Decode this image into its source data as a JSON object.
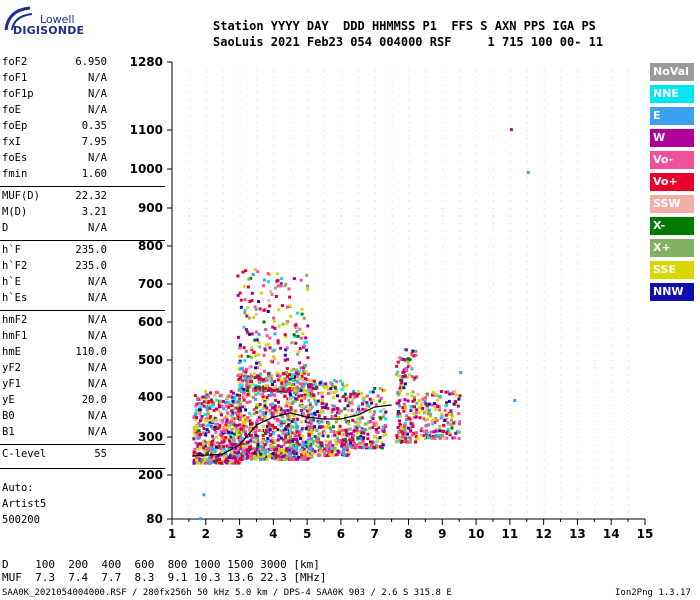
{
  "logo": {
    "line1": "Lowell",
    "line2": "DIGISONDE"
  },
  "header": {
    "line1": "Station YYYY DAY  DDD HHMMSS P1  FFS S AXN PPS IGA PS",
    "line2": "SaoLuis 2021 Feb23 054 004000 RSF     1 715 100 00- 11"
  },
  "params": [
    {
      "name": "foF2",
      "value": "6.950"
    },
    {
      "name": "foF1",
      "value": "N/A"
    },
    {
      "name": "foF1p",
      "value": "N/A"
    },
    {
      "name": "foE",
      "value": "N/A"
    },
    {
      "name": "foEp",
      "value": "0.35"
    },
    {
      "name": "fxI",
      "value": "7.95"
    },
    {
      "name": "foEs",
      "value": "N/A"
    },
    {
      "name": "fmin",
      "value": "1.60"
    },
    {
      "name": "MUF(D)",
      "value": "22.32"
    },
    {
      "name": "M(D)",
      "value": "3.21"
    },
    {
      "name": "D",
      "value": "N/A"
    },
    {
      "name": "h`F",
      "value": "235.0"
    },
    {
      "name": "h`F2",
      "value": "235.0"
    },
    {
      "name": "h`E",
      "value": "N/A"
    },
    {
      "name": "h`Es",
      "value": "N/A"
    },
    {
      "name": "hmF2",
      "value": "N/A"
    },
    {
      "name": "hmF1",
      "value": "N/A"
    },
    {
      "name": "hmE",
      "value": "110.0"
    },
    {
      "name": "yF2",
      "value": "N/A"
    },
    {
      "name": "yF1",
      "value": "N/A"
    },
    {
      "name": "yE",
      "value": "20.0"
    },
    {
      "name": "B0",
      "value": "N/A"
    },
    {
      "name": "B1",
      "value": "N/A"
    },
    {
      "name": "C-level",
      "value": "55"
    }
  ],
  "auto": {
    "line1": "Auto:",
    "line2": "Artist5",
    "line3": "500200"
  },
  "legend": [
    {
      "label": "NoVal",
      "color": "#9a9a9a"
    },
    {
      "label": "NNE",
      "color": "#00e6f0"
    },
    {
      "label": "E",
      "color": "#3aa0f0"
    },
    {
      "label": "W",
      "color": "#b0009a"
    },
    {
      "label": "Vo-",
      "color": "#f0509a"
    },
    {
      "label": "Vo+",
      "color": "#e6002a"
    },
    {
      "label": "SSW",
      "color": "#f0b0a8"
    },
    {
      "label": "X-",
      "color": "#007a00"
    },
    {
      "label": "X+",
      "color": "#80b060"
    },
    {
      "label": "SSE",
      "color": "#d8d800"
    },
    {
      "label": "NNW",
      "color": "#1010b0"
    }
  ],
  "chart_data": {
    "type": "scatter",
    "title": "",
    "xlabel": "",
    "ylabel": "",
    "x_ticks": [
      "1",
      "2",
      "3",
      "4",
      "5",
      "6",
      "7",
      "8",
      "9",
      "10",
      "11",
      "12",
      "13",
      "14",
      "15"
    ],
    "y_ticks": [
      "80",
      "200",
      "300",
      "400",
      "500",
      "600",
      "700",
      "800",
      "900",
      "1000",
      "1100",
      "1280"
    ],
    "xlim": [
      1,
      15
    ],
    "ylim": [
      80,
      1280
    ],
    "grid": true,
    "regions": [
      {
        "x0": 1.6,
        "x1": 3.0,
        "y0": 235,
        "y1": 420,
        "density": 560
      },
      {
        "x0": 2.9,
        "x1": 5.1,
        "y0": 245,
        "y1": 470,
        "density": 900
      },
      {
        "x0": 2.9,
        "x1": 5.0,
        "y0": 420,
        "y1": 750,
        "density": 280
      },
      {
        "x0": 5.0,
        "x1": 6.2,
        "y0": 255,
        "y1": 450,
        "density": 320
      },
      {
        "x0": 6.2,
        "x1": 7.3,
        "y0": 275,
        "y1": 430,
        "density": 200
      },
      {
        "x0": 7.6,
        "x1": 8.2,
        "y0": 290,
        "y1": 540,
        "density": 170
      },
      {
        "x0": 8.2,
        "x1": 9.5,
        "y0": 300,
        "y1": 420,
        "density": 160
      }
    ],
    "trace": [
      [
        1.6,
        250
      ],
      [
        2.5,
        255
      ],
      [
        3.0,
        280
      ],
      [
        3.5,
        330
      ],
      [
        4.0,
        350
      ],
      [
        4.5,
        360
      ],
      [
        5.0,
        350
      ],
      [
        5.5,
        345
      ],
      [
        6.0,
        345
      ],
      [
        6.5,
        355
      ],
      [
        7.0,
        375
      ],
      [
        7.5,
        380
      ]
    ],
    "outliers": [
      [
        11.0,
        1105
      ],
      [
        11.5,
        995
      ],
      [
        11.1,
        395
      ],
      [
        9.5,
        470
      ],
      [
        1.8,
        85
      ],
      [
        1.9,
        150
      ]
    ]
  },
  "bottom": {
    "line1": "D    100  200  400  600  800 1000 1500 3000 [km]",
    "line2": "MUF  7.3  7.4  7.7  8.3  9.1 10.3 13.6 22.3 [MHz]"
  },
  "footer": {
    "left": "SAA0K_2021054004000.RSF / 280fx256h 50 kHz 5.0 km / DPS-4 SAA0K 903 / 2.6 S 315.8 E",
    "right": "Ion2Png 1.3.17"
  }
}
